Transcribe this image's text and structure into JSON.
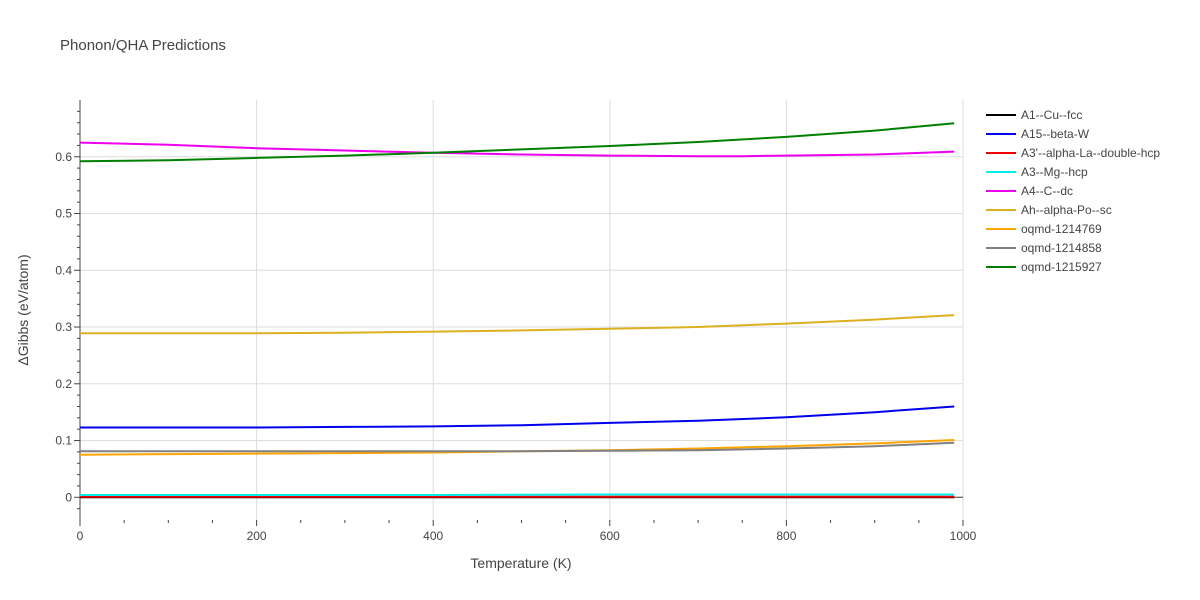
{
  "chart_data": {
    "type": "line",
    "title": "Phonon/QHA Predictions",
    "xlabel": "Temperature (K)",
    "ylabel": "ΔGibbs (eV/atom)",
    "xlim": [
      0,
      1000
    ],
    "ylim": [
      -0.04,
      0.7
    ],
    "xticks": [
      0,
      200,
      400,
      600,
      800,
      1000
    ],
    "yticks": [
      0,
      0.1,
      0.2,
      0.3,
      0.4,
      0.5,
      0.6
    ],
    "grid": true,
    "legend_position": "right",
    "series": [
      {
        "name": "A1--Cu--fcc",
        "color": "#000000",
        "x": [
          0,
          200,
          400,
          600,
          800,
          990
        ],
        "y": [
          0.0,
          0.0,
          0.0,
          0.0,
          0.0,
          0.0
        ]
      },
      {
        "name": "A15--beta-W",
        "color": "#0000ee",
        "x": [
          0,
          100,
          200,
          300,
          400,
          500,
          600,
          700,
          800,
          900,
          990
        ],
        "y": [
          0.123,
          0.123,
          0.123,
          0.124,
          0.125,
          0.127,
          0.131,
          0.135,
          0.141,
          0.15,
          0.16
        ]
      },
      {
        "name": "A3'--alpha-La--double-hcp",
        "color": "#ee0000",
        "x": [
          0,
          200,
          400,
          600,
          800,
          990
        ],
        "y": [
          0.001,
          0.001,
          0.001,
          0.001,
          0.001,
          0.001
        ]
      },
      {
        "name": "A3--Mg--hcp",
        "color": "#00eeee",
        "x": [
          0,
          200,
          400,
          600,
          800,
          990
        ],
        "y": [
          0.004,
          0.004,
          0.004,
          0.005,
          0.005,
          0.005
        ]
      },
      {
        "name": "A4--C--dc",
        "color": "#ee00ee",
        "x": [
          0,
          100,
          200,
          300,
          400,
          500,
          600,
          700,
          750,
          800,
          900,
          990
        ],
        "y": [
          0.625,
          0.621,
          0.615,
          0.611,
          0.607,
          0.604,
          0.602,
          0.601,
          0.601,
          0.602,
          0.604,
          0.609
        ]
      },
      {
        "name": "Ah--alpha-Po--sc",
        "color": "#ddb020",
        "x": [
          0,
          100,
          200,
          300,
          400,
          500,
          600,
          700,
          800,
          900,
          990
        ],
        "y": [
          0.289,
          0.289,
          0.289,
          0.29,
          0.292,
          0.294,
          0.297,
          0.3,
          0.306,
          0.313,
          0.321
        ]
      },
      {
        "name": "oqmd-1214769",
        "color": "#ffa500",
        "x": [
          0,
          200,
          400,
          500,
          600,
          700,
          800,
          900,
          990
        ],
        "y": [
          0.075,
          0.077,
          0.079,
          0.081,
          0.083,
          0.086,
          0.09,
          0.095,
          0.101
        ]
      },
      {
        "name": "oqmd-1214858",
        "color": "#808080",
        "x": [
          0,
          200,
          400,
          500,
          600,
          700,
          800,
          900,
          990
        ],
        "y": [
          0.081,
          0.081,
          0.081,
          0.081,
          0.082,
          0.083,
          0.086,
          0.09,
          0.096
        ]
      },
      {
        "name": "oqmd-1215927",
        "color": "#008000",
        "x": [
          0,
          100,
          200,
          300,
          400,
          500,
          600,
          700,
          800,
          900,
          990
        ],
        "y": [
          0.592,
          0.594,
          0.598,
          0.602,
          0.607,
          0.613,
          0.619,
          0.626,
          0.635,
          0.646,
          0.659
        ]
      }
    ]
  }
}
